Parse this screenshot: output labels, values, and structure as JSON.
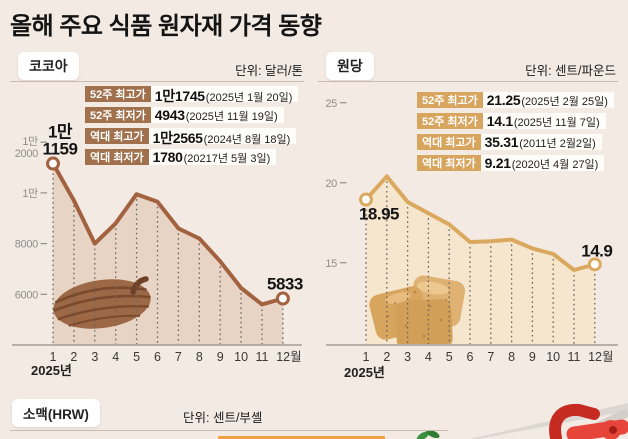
{
  "title": "올해 주요 식품 원자재 가격 동향",
  "panels": [
    {
      "name": "코코아",
      "unit": "단위: 달러/톤",
      "badge_color": "#a1714d",
      "stats": [
        {
          "label": "52주 최고가",
          "value": "1만1745",
          "date": "(2025년 1월 20일)"
        },
        {
          "label": "52주 최저가",
          "value": "4943",
          "date": "(2025년 11월 19일)"
        },
        {
          "label": "역대 최고가",
          "value": "1만2565",
          "date": "(2024년 8월 18일)"
        },
        {
          "label": "역대 최저가",
          "value": "1780",
          "date": "(20217년 5월 3일)"
        }
      ]
    },
    {
      "name": "원당",
      "unit": "단위: 센트/파운드",
      "badge_color": "#d8a55e",
      "stats": [
        {
          "label": "52주 최고가",
          "value": "21.25",
          "date": "(2025년 2월 25일)"
        },
        {
          "label": "52주 최저가",
          "value": "14.1",
          "date": "(2025년 11월 7일)"
        },
        {
          "label": "역대 최고가",
          "value": "35.31",
          "date": "(2011년 2월2일)"
        },
        {
          "label": "역대 최저가",
          "value": "9.21",
          "date": "(2020년 4월 27일)"
        }
      ]
    }
  ],
  "bottom_panel": {
    "name": "소맥(HRW)",
    "unit": "단위: 센트/부셸"
  },
  "chart_data": [
    {
      "type": "line",
      "title": "코코아",
      "unit": "달러/톤",
      "x": [
        1,
        2,
        3,
        4,
        5,
        6,
        7,
        8,
        9,
        10,
        11,
        12
      ],
      "x_tick_labels": [
        "1",
        "2",
        "3",
        "4",
        "5",
        "6",
        "7",
        "8",
        "9",
        "10",
        "11",
        "12월"
      ],
      "xlabel": "2025년",
      "values": [
        11159,
        9700,
        8000,
        8800,
        9950,
        9650,
        8600,
        8200,
        7300,
        6250,
        5600,
        5833
      ],
      "ylim": [
        4000,
        12300
      ],
      "yticks": [
        {
          "value": 12000,
          "lines": [
            "1만",
            "2000"
          ]
        },
        {
          "value": 10000,
          "lines": [
            "1만"
          ]
        },
        {
          "value": 8000,
          "lines": [
            "8000"
          ]
        },
        {
          "value": 6000,
          "lines": [
            "6000"
          ]
        }
      ],
      "first_point_label": {
        "lines": [
          "1만",
          "1159"
        ],
        "position": "above"
      },
      "last_point_label": {
        "lines": [
          "5833"
        ],
        "position": "above"
      },
      "line_color": "#a2613f",
      "fill_color": "#e7d4c5",
      "grid": "dotted-drop-lines",
      "legend_position": "top-right-stats"
    },
    {
      "type": "line",
      "title": "원당",
      "unit": "센트/파운드",
      "x": [
        1,
        2,
        3,
        4,
        5,
        6,
        7,
        8,
        9,
        10,
        11,
        12
      ],
      "x_tick_labels": [
        "1",
        "2",
        "3",
        "4",
        "5",
        "6",
        "7",
        "8",
        "9",
        "10",
        "11",
        "12월"
      ],
      "xlabel": "2025년",
      "values": [
        18.95,
        20.4,
        18.8,
        18.1,
        17.4,
        16.3,
        16.35,
        16.45,
        15.9,
        15.55,
        14.55,
        14.9
      ],
      "ylim": [
        9.9,
        25.8
      ],
      "yticks": [
        {
          "value": 25,
          "lines": [
            "25"
          ]
        },
        {
          "value": 20,
          "lines": [
            "20"
          ]
        },
        {
          "value": 15,
          "lines": [
            "15"
          ]
        }
      ],
      "first_point_label": {
        "lines": [
          "18.95"
        ],
        "position": "below"
      },
      "last_point_label": {
        "lines": [
          "14.9"
        ],
        "position": "above"
      },
      "line_color": "#dba860",
      "fill_color": "#f5e6cd",
      "grid": "dotted-drop-lines",
      "legend_position": "top-right-stats"
    }
  ]
}
